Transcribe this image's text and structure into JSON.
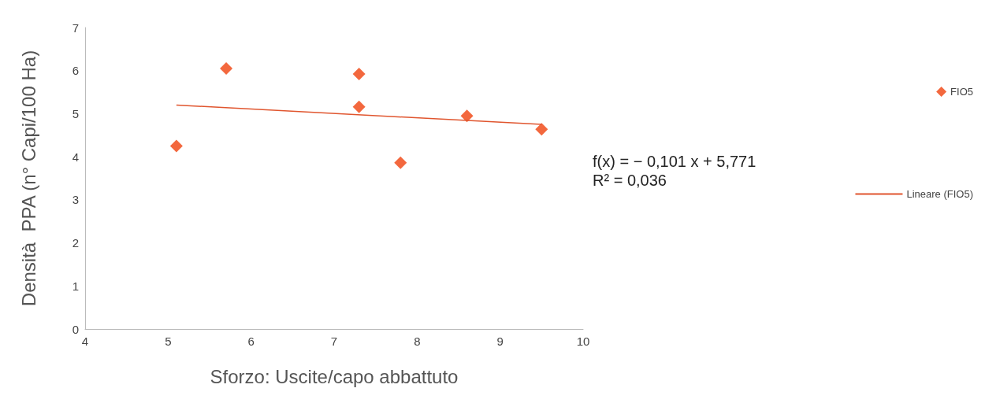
{
  "chart_data": {
    "type": "scatter",
    "xlabel": "Sforzo: Uscite/capo abbattuto",
    "ylabel": "Densità  PPA (n° Capi/100 Ha)",
    "xlim": [
      4,
      10
    ],
    "xticks": [
      4,
      5,
      6,
      7,
      8,
      9,
      10
    ],
    "ylim": [
      0,
      7
    ],
    "yticks": [
      0,
      1,
      2,
      3,
      4,
      5,
      6,
      7
    ],
    "grid": false,
    "legend": "right",
    "series": [
      {
        "name": "FIO5",
        "marker": "diamond",
        "color": "#f0420e",
        "x": [
          5.1,
          5.7,
          7.3,
          7.3,
          7.8,
          8.6,
          9.5
        ],
        "values": [
          4.25,
          6.05,
          5.92,
          5.16,
          3.86,
          4.95,
          4.64
        ]
      },
      {
        "name": "Lineare (FIO5)",
        "type": "line",
        "marker": "none",
        "color": "#e0552e",
        "x": [
          5.1,
          9.5
        ],
        "values": [
          5.2,
          4.75
        ]
      }
    ],
    "annotations": [
      "f(x) = − 0,101 x + 5,771",
      "R² = 0,036"
    ]
  }
}
